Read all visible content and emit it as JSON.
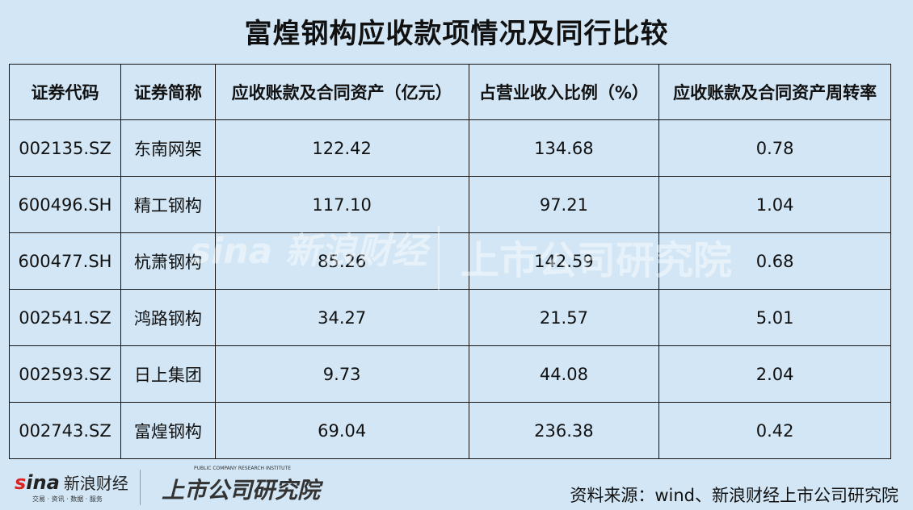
{
  "title": "富煌钢构应收款项情况及同行比较",
  "chart_data": {
    "type": "table",
    "title": "富煌钢构应收款项情况及同行比较",
    "columns": [
      "证券代码",
      "证券简称",
      "应收账款及合同资产（亿元）",
      "占营业收入比例（%）",
      "应收账款及合同资产周转率"
    ],
    "rows": [
      [
        "002135.SZ",
        "东南网架",
        "122.42",
        "134.68",
        "0.78"
      ],
      [
        "600496.SH",
        "精工钢构",
        "117.10",
        "97.21",
        "1.04"
      ],
      [
        "600477.SH",
        "杭萧钢构",
        "85.26",
        "142.59",
        "0.68"
      ],
      [
        "002541.SZ",
        "鸿路钢构",
        "34.27",
        "21.57",
        "5.01"
      ],
      [
        "002593.SZ",
        "日上集团",
        "9.73",
        "44.08",
        "2.04"
      ],
      [
        "002743.SZ",
        "富煌钢构",
        "69.04",
        "236.38",
        "0.42"
      ]
    ]
  },
  "watermark": {
    "left": "sina 新浪财经",
    "left_sub": "交易 · 资讯 · 数据 · 服务",
    "right": "上市公司研究院"
  },
  "footer": {
    "logo1_brand": "sina",
    "logo1_name": "新浪财经",
    "logo1_sub": "交易 · 资讯 · 数据 · 服务",
    "logo2_name": "上市公司研究院",
    "logo2_en": "PUBLIC COMPANY RESEARCH INSTITUTE",
    "source": "资料来源：wind、新浪财经上市公司研究院"
  }
}
